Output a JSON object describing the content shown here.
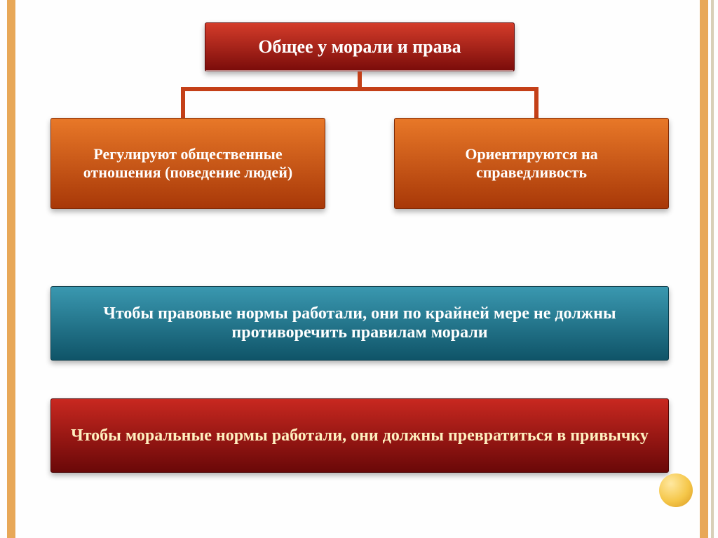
{
  "sideStripe": {
    "orange": "#e8a858",
    "thin": "#d8d0b8"
  },
  "title": {
    "text": "Общее у морали и права",
    "fontsize": 26,
    "color": "#ffffff",
    "gradientTop": "#d43c2a",
    "gradientBottom": "#7a0c0a",
    "border": "#5c0808"
  },
  "connector": {
    "color": "#c44018"
  },
  "branches": {
    "left": {
      "text": "Регулируют общественные отношения (поведение людей)",
      "fontsize": 22,
      "color": "#ffffff",
      "gradientTop": "#e87828",
      "gradientBottom": "#a83808",
      "border": "#7a2806"
    },
    "right": {
      "text": "Ориентируются на справедливость",
      "fontsize": 22,
      "color": "#ffffff",
      "gradientTop": "#e87828",
      "gradientBottom": "#a83808",
      "border": "#7a2806"
    }
  },
  "statements": {
    "s1": {
      "text": "Чтобы правовые нормы работали, они по крайней мере не должны противоречить правилам морали",
      "fontsize": 24,
      "color": "#ffffff",
      "gradientTop": "#3a98b0",
      "gradientBottom": "#0f5468",
      "border": "#0a3a48"
    },
    "s2": {
      "text": "Чтобы моральные нормы работали, они должны превратиться в привычку",
      "fontsize": 24,
      "color": "#fff0c0",
      "gradientTop": "#c82820",
      "gradientBottom": "#6a0808",
      "border": "#4a0606"
    }
  }
}
